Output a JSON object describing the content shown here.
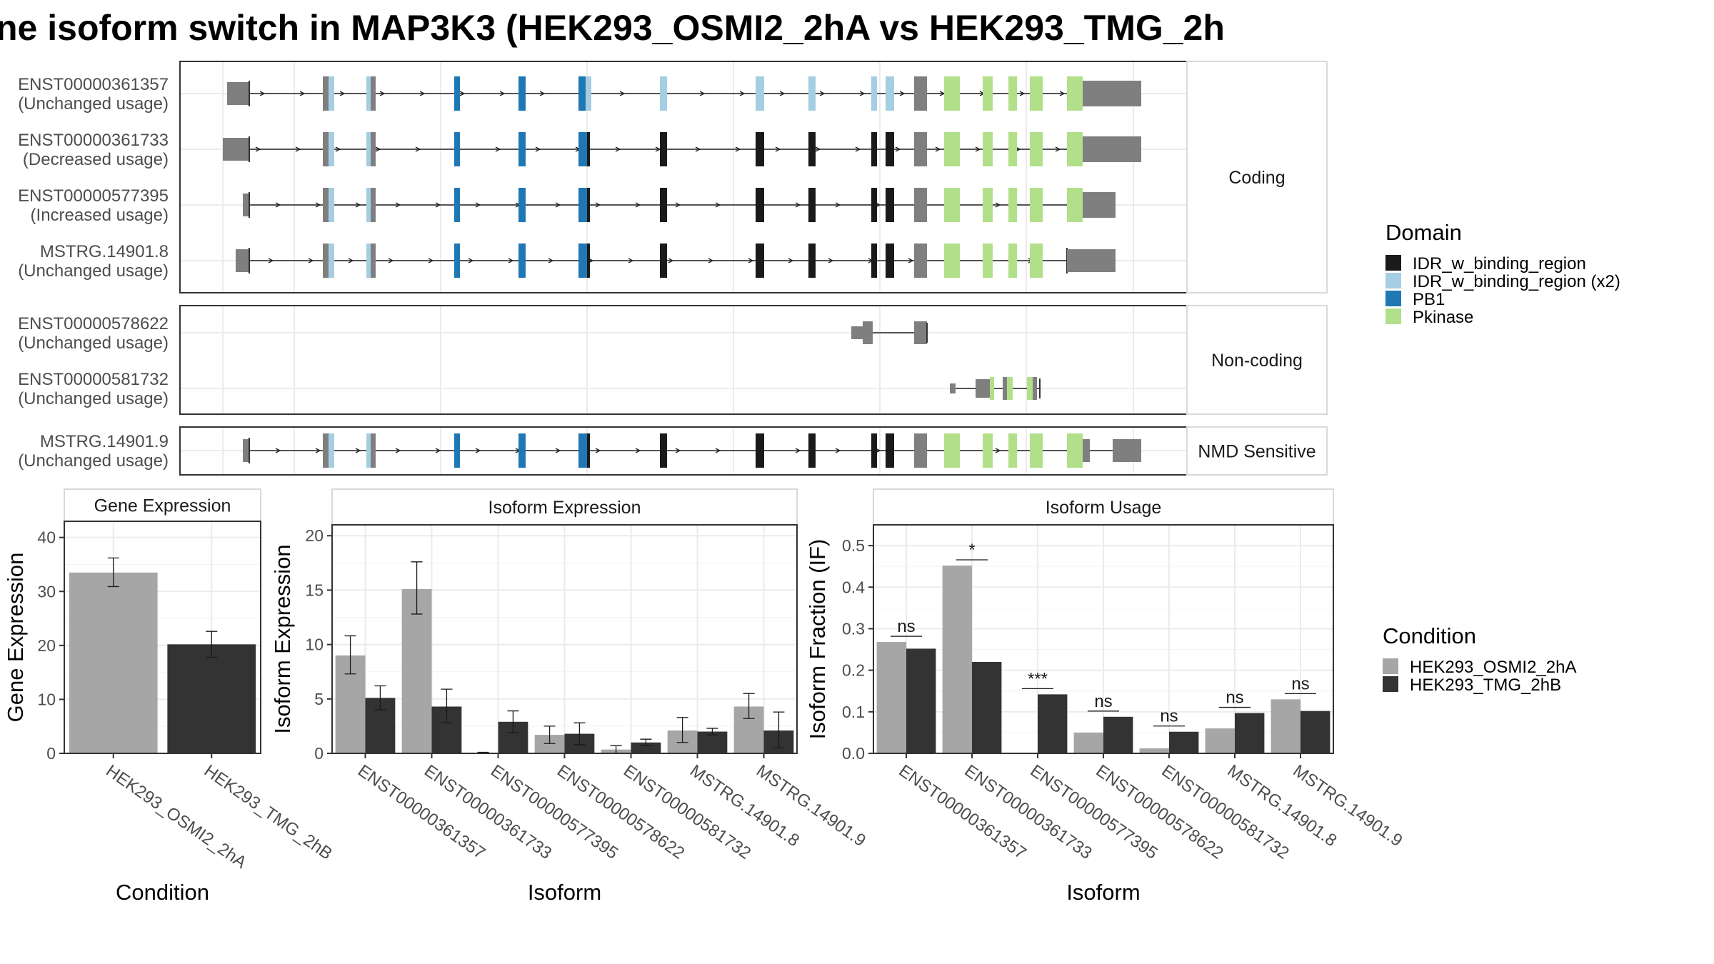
{
  "title": "ne isoform switch in MAP3K3 (HEK293_OSMI2_2hA vs HEK293_TMG_2h",
  "colors": {
    "exon": "#7f7f7f",
    "IDR_w_binding_region": "#1a1a1a",
    "IDR_w_binding_region_x2": "#a6cee3",
    "PB1": "#1f78b4",
    "Pkinase": "#b2df8a",
    "condition_1": "#a6a6a6",
    "condition_2": "#333333"
  },
  "transcript_panel": {
    "groups": [
      {
        "label": "Coding",
        "transcripts": [
          {
            "id": "ENST00000361357",
            "usage": "(Unchanged usage)"
          },
          {
            "id": "ENST00000361733",
            "usage": "(Decreased usage)"
          },
          {
            "id": "ENST00000577395",
            "usage": "(Increased usage)"
          },
          {
            "id": "MSTRG.14901.8",
            "usage": "(Unchanged usage)"
          }
        ]
      },
      {
        "label": "Non-coding",
        "transcripts": [
          {
            "id": "ENST00000578622",
            "usage": "(Unchanged usage)"
          },
          {
            "id": "ENST00000581732",
            "usage": "(Unchanged usage)"
          }
        ]
      },
      {
        "label": "NMD Sensitive",
        "transcripts": [
          {
            "id": "MSTRG.14901.9",
            "usage": "(Unchanged usage)"
          }
        ]
      }
    ]
  },
  "domain_legend": {
    "title": "Domain",
    "items": [
      {
        "label": "IDR_w_binding_region",
        "color": "#1a1a1a"
      },
      {
        "label": "IDR_w_binding_region (x2)",
        "color": "#a6cee3"
      },
      {
        "label": "PB1",
        "color": "#1f78b4"
      },
      {
        "label": "Pkinase",
        "color": "#b2df8a"
      }
    ]
  },
  "condition_legend": {
    "title": "Condition",
    "items": [
      {
        "label": "HEK293_OSMI2_2hA",
        "color": "#a6a6a6"
      },
      {
        "label": "HEK293_TMG_2hB",
        "color": "#333333"
      }
    ]
  },
  "chart_data": [
    {
      "type": "bar",
      "title": "Gene Expression",
      "xlabel": "Condition",
      "ylabel": "Gene Expression",
      "ylim": [
        0,
        43
      ],
      "yticks": [
        0,
        10,
        20,
        30,
        40
      ],
      "categories": [
        "HEK293_OSMI2_2hA",
        "HEK293_TMG_2hB"
      ],
      "values": [
        33.5,
        20.2
      ],
      "errors": [
        [
          30.9,
          36.2
        ],
        [
          17.8,
          22.6
        ]
      ],
      "grid": true
    },
    {
      "type": "bar",
      "title": "Isoform Expression",
      "xlabel": "Isoform",
      "ylabel": "Isoform Expression",
      "ylim": [
        0,
        21
      ],
      "yticks": [
        0,
        5,
        10,
        15,
        20
      ],
      "categories": [
        "ENST00000361357",
        "ENST00000361733",
        "ENST00000577395",
        "ENST00000578622",
        "ENST00000581732",
        "MSTRG.14901.8",
        "MSTRG.14901.9"
      ],
      "series": [
        {
          "name": "HEK293_OSMI2_2hA",
          "values": [
            9.0,
            15.1,
            0.05,
            1.7,
            0.35,
            2.1,
            4.3
          ],
          "errors": [
            [
              7.3,
              10.8
            ],
            [
              12.8,
              17.6
            ],
            [
              0.0,
              0.1
            ],
            [
              0.9,
              2.5
            ],
            [
              0.0,
              0.7
            ],
            [
              1.0,
              3.3
            ],
            [
              3.2,
              5.5
            ]
          ]
        },
        {
          "name": "HEK293_TMG_2hB",
          "values": [
            5.1,
            4.3,
            2.9,
            1.8,
            1.0,
            2.0,
            2.1
          ],
          "errors": [
            [
              4.0,
              6.2
            ],
            [
              2.8,
              5.9
            ],
            [
              1.9,
              3.9
            ],
            [
              0.8,
              2.8
            ],
            [
              0.7,
              1.3
            ],
            [
              1.7,
              2.3
            ],
            [
              0.5,
              3.8
            ]
          ]
        }
      ],
      "grid": true
    },
    {
      "type": "bar",
      "title": "Isoform Usage",
      "xlabel": "Isoform",
      "ylabel": "Isoform Fraction (IF)",
      "ylim": [
        0,
        0.55
      ],
      "yticks": [
        0.0,
        0.1,
        0.2,
        0.3,
        0.4,
        0.5
      ],
      "yticklabels": [
        "0.0",
        "0.1",
        "0.2",
        "0.3",
        "0.4",
        "0.5"
      ],
      "categories": [
        "ENST00000361357",
        "ENST00000361733",
        "ENST00000577395",
        "ENST00000578622",
        "ENST00000581732",
        "MSTRG.14901.8",
        "MSTRG.14901.9"
      ],
      "series": [
        {
          "name": "HEK293_OSMI2_2hA",
          "values": [
            0.268,
            0.452,
            0.0,
            0.05,
            0.012,
            0.06,
            0.13
          ]
        },
        {
          "name": "HEK293_TMG_2hB",
          "values": [
            0.252,
            0.22,
            0.142,
            0.088,
            0.052,
            0.097,
            0.102
          ]
        }
      ],
      "significance": [
        "ns",
        "*",
        "***",
        "ns",
        "ns",
        "ns",
        "ns"
      ],
      "grid": true
    }
  ]
}
